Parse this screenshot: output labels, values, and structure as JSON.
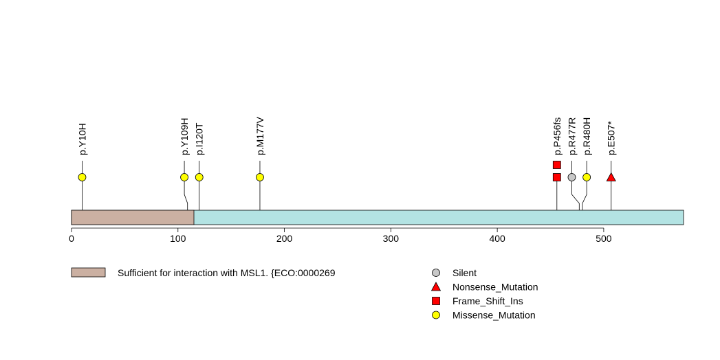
{
  "chart_data": {
    "type": "lollipop",
    "xlim": [
      0,
      575
    ],
    "protein_length": 575,
    "x_ticks": [
      "0",
      "100",
      "200",
      "300",
      "400",
      "500"
    ],
    "x_tick_values": [
      0,
      100,
      200,
      300,
      400,
      500
    ],
    "domains": [
      {
        "name": "Sufficient for interaction with MSL1. {ECO:0000269",
        "start": 0,
        "end": 115,
        "color": "#cbb0a2"
      }
    ],
    "backbone_color": "#b3e3e3",
    "mutations": [
      {
        "label": "p.Y10H",
        "position": 10,
        "marker_position": 10,
        "type": "Missense_Mutation",
        "count": 1
      },
      {
        "label": "p.Y109H",
        "position": 109,
        "marker_position": 106,
        "type": "Missense_Mutation",
        "count": 1
      },
      {
        "label": "p.I120T",
        "position": 120,
        "marker_position": 120,
        "type": "Missense_Mutation",
        "count": 1
      },
      {
        "label": "p.M177V",
        "position": 177,
        "marker_position": 177,
        "type": "Missense_Mutation",
        "count": 1
      },
      {
        "label": "p.P456fs",
        "position": 456,
        "marker_position": 456,
        "type": "Frame_Shift_Ins",
        "count": 2
      },
      {
        "label": "p.R477R",
        "position": 477,
        "marker_position": 470,
        "type": "Silent",
        "count": 1
      },
      {
        "label": "p.R480H",
        "position": 480,
        "marker_position": 484,
        "type": "Missense_Mutation",
        "count": 1
      },
      {
        "label": "p.E507*",
        "position": 507,
        "marker_position": 507,
        "type": "Nonsense_Mutation",
        "count": 1
      }
    ],
    "legend": [
      {
        "label": "Silent",
        "shape": "circle",
        "color": "#c8c8c8"
      },
      {
        "label": "Nonsense_Mutation",
        "shape": "triangle",
        "color": "#ff0000"
      },
      {
        "label": "Frame_Shift_Ins",
        "shape": "square",
        "color": "#ff0000"
      },
      {
        "label": "Missense_Mutation",
        "shape": "circle",
        "color": "#ffff00"
      }
    ]
  }
}
